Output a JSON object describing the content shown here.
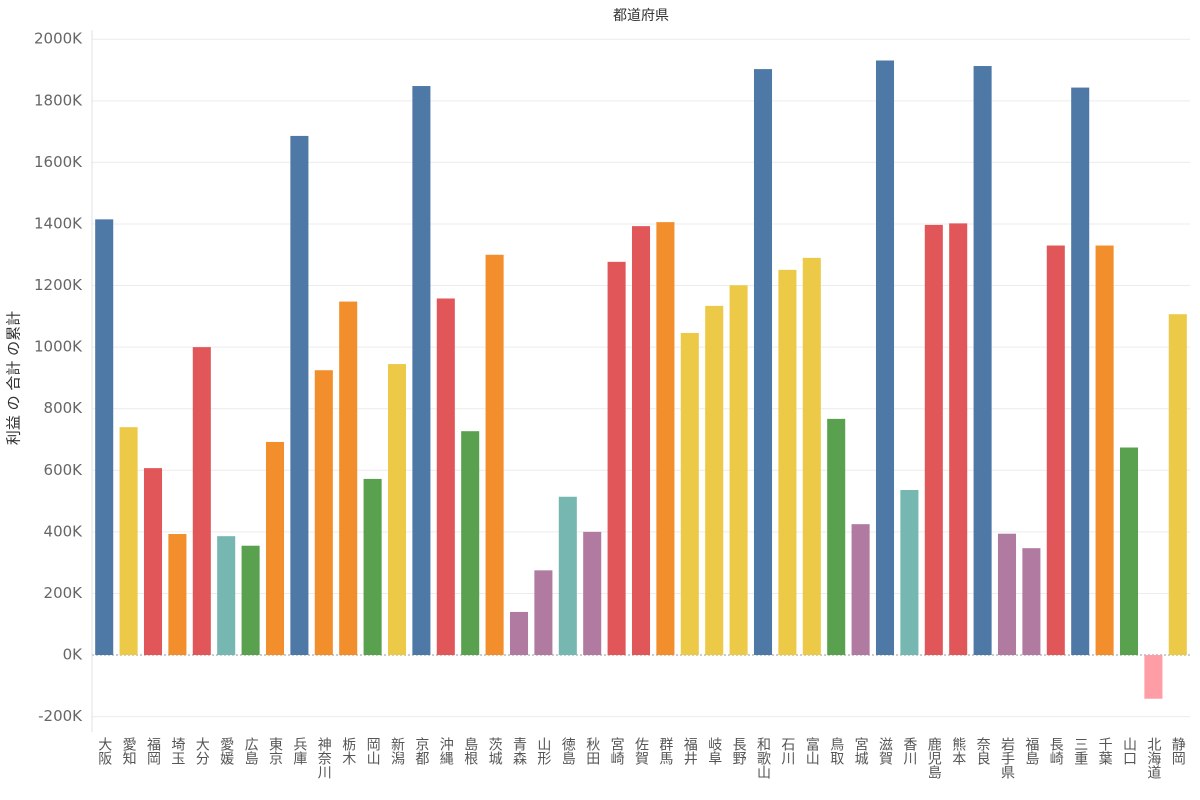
{
  "chart_data": {
    "type": "bar",
    "title": "都道府県",
    "ylabel": "利益 の 合計 の累計",
    "categories": [
      "大阪",
      "愛知",
      "福岡",
      "埼玉",
      "大分",
      "愛媛",
      "広島",
      "東京",
      "兵庫",
      "神奈川",
      "栃木",
      "岡山",
      "新潟",
      "京都",
      "沖縄",
      "島根",
      "茨城",
      "青森",
      "山形",
      "徳島",
      "秋田",
      "宮崎",
      "佐賀",
      "群馬",
      "福井",
      "岐阜",
      "長野",
      "和歌山",
      "石川",
      "富山",
      "鳥取",
      "宮城",
      "滋賀",
      "香川",
      "鹿児島",
      "熊本",
      "奈良",
      "岩手県",
      "福島",
      "長崎",
      "三重",
      "千葉",
      "山口",
      "北海道",
      "静岡"
    ],
    "values": [
      1415,
      740,
      607,
      393,
      1000,
      386,
      355,
      692,
      1686,
      925,
      1148,
      572,
      945,
      1848,
      1158,
      727,
      1300,
      140,
      275,
      514,
      400,
      1277,
      1393,
      1406,
      1046,
      1134,
      1201,
      1903,
      1251,
      1290,
      767,
      425,
      1931,
      536,
      1397,
      1402,
      1913,
      394,
      347,
      1330,
      1843,
      1330,
      674,
      -142,
      1107
    ],
    "colors": [
      "#4e79a7",
      "#edc948",
      "#e15759",
      "#f28e2b",
      "#e15759",
      "#76b7b2",
      "#59a14f",
      "#f28e2b",
      "#4e79a7",
      "#f28e2b",
      "#f28e2b",
      "#59a14f",
      "#edc948",
      "#4e79a7",
      "#e15759",
      "#59a14f",
      "#f28e2b",
      "#b07aa1",
      "#b07aa1",
      "#76b7b2",
      "#b07aa1",
      "#e15759",
      "#e15759",
      "#f28e2b",
      "#edc948",
      "#edc948",
      "#edc948",
      "#4e79a7",
      "#edc948",
      "#edc948",
      "#59a14f",
      "#b07aa1",
      "#4e79a7",
      "#76b7b2",
      "#e15759",
      "#e15759",
      "#4e79a7",
      "#b07aa1",
      "#b07aa1",
      "#e15759",
      "#4e79a7",
      "#f28e2b",
      "#59a14f",
      "#ff9da7",
      "#edc948"
    ],
    "ylim": [
      -250,
      2030
    ],
    "yticks": [
      -200,
      0,
      200,
      400,
      600,
      800,
      1000,
      1200,
      1400,
      1600,
      1800,
      2000
    ],
    "ytick_labels": [
      "-200K",
      "0K",
      "200K",
      "400K",
      "600K",
      "800K",
      "1000K",
      "1200K",
      "1400K",
      "1600K",
      "1800K",
      "2000K"
    ],
    "grid": true
  }
}
